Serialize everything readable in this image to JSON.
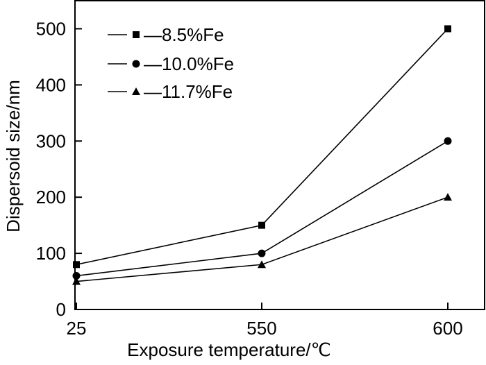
{
  "chart_data": {
    "type": "line",
    "xlabel": "Exposure temperature/℃",
    "ylabel": "Dispersoid size/nm",
    "categories": [
      "25",
      "550",
      "600"
    ],
    "ylim": [
      0,
      550
    ],
    "yticks": [
      0,
      100,
      200,
      300,
      400,
      500
    ],
    "grid": false,
    "legend_position": "top-left",
    "series": [
      {
        "name": "—8.5%Fe",
        "marker": "square",
        "values": [
          80,
          150,
          500
        ]
      },
      {
        "name": "—10.0%Fe",
        "marker": "circle",
        "values": [
          60,
          100,
          300
        ]
      },
      {
        "name": "—11.7%Fe",
        "marker": "triangle",
        "values": [
          50,
          80,
          200
        ]
      }
    ]
  }
}
